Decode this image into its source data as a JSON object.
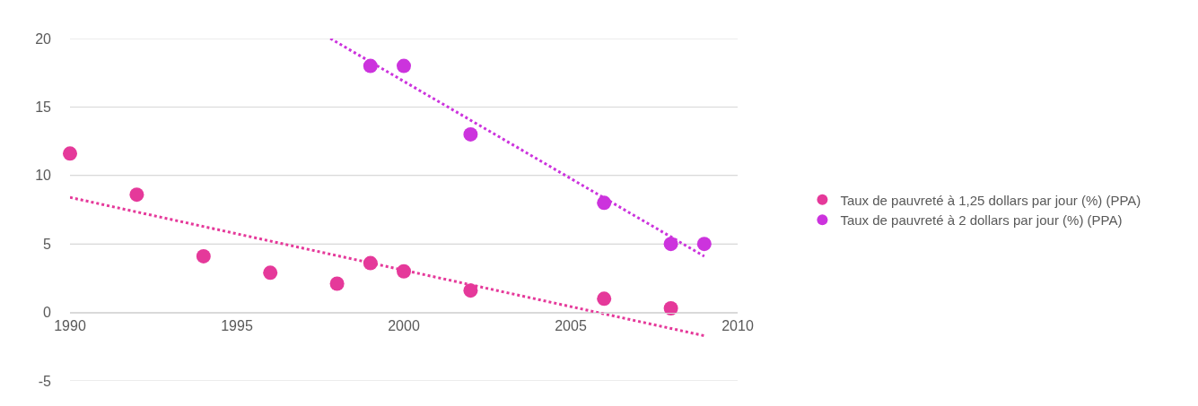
{
  "chart_data": {
    "type": "scatter",
    "xlim": [
      1990,
      2010
    ],
    "xticks": [
      1990,
      1995,
      2000,
      2005,
      2010
    ],
    "ylim": [
      -5,
      20
    ],
    "yticks": [
      -5,
      0,
      5,
      10,
      15,
      20
    ],
    "grid": "y",
    "legend": "right",
    "marker": "circle",
    "series": [
      {
        "name": "Taux de pauvreté à 1,25 dollars par jour (%) (PPA)",
        "color": "#e5399a",
        "x": [
          1990,
          1992,
          1994,
          1996,
          1998,
          1999,
          2000,
          2002,
          2006,
          2008
        ],
        "values": [
          11.6,
          8.6,
          4.1,
          2.9,
          2.1,
          3.6,
          3.0,
          1.6,
          1.0,
          0.3
        ]
      },
      {
        "name": "Taux de pauvreté à 2 dollars par jour (%) (PPA)",
        "color": "#cc33dd",
        "x": [
          1999,
          2000,
          2002,
          2006,
          2008,
          2009
        ],
        "values": [
          18,
          18,
          13,
          8,
          5,
          5
        ]
      },
      {
        "type": "line",
        "marker": "none",
        "line_style": "dotted",
        "color": "#e5399a",
        "x": [
          1990,
          2009
        ],
        "values": [
          8.4,
          -1.7
        ]
      },
      {
        "type": "line",
        "marker": "none",
        "line_style": "dotted",
        "color": "#cc33dd",
        "x": [
          1997.8,
          2009
        ],
        "values": [
          20,
          4.1
        ]
      }
    ]
  }
}
